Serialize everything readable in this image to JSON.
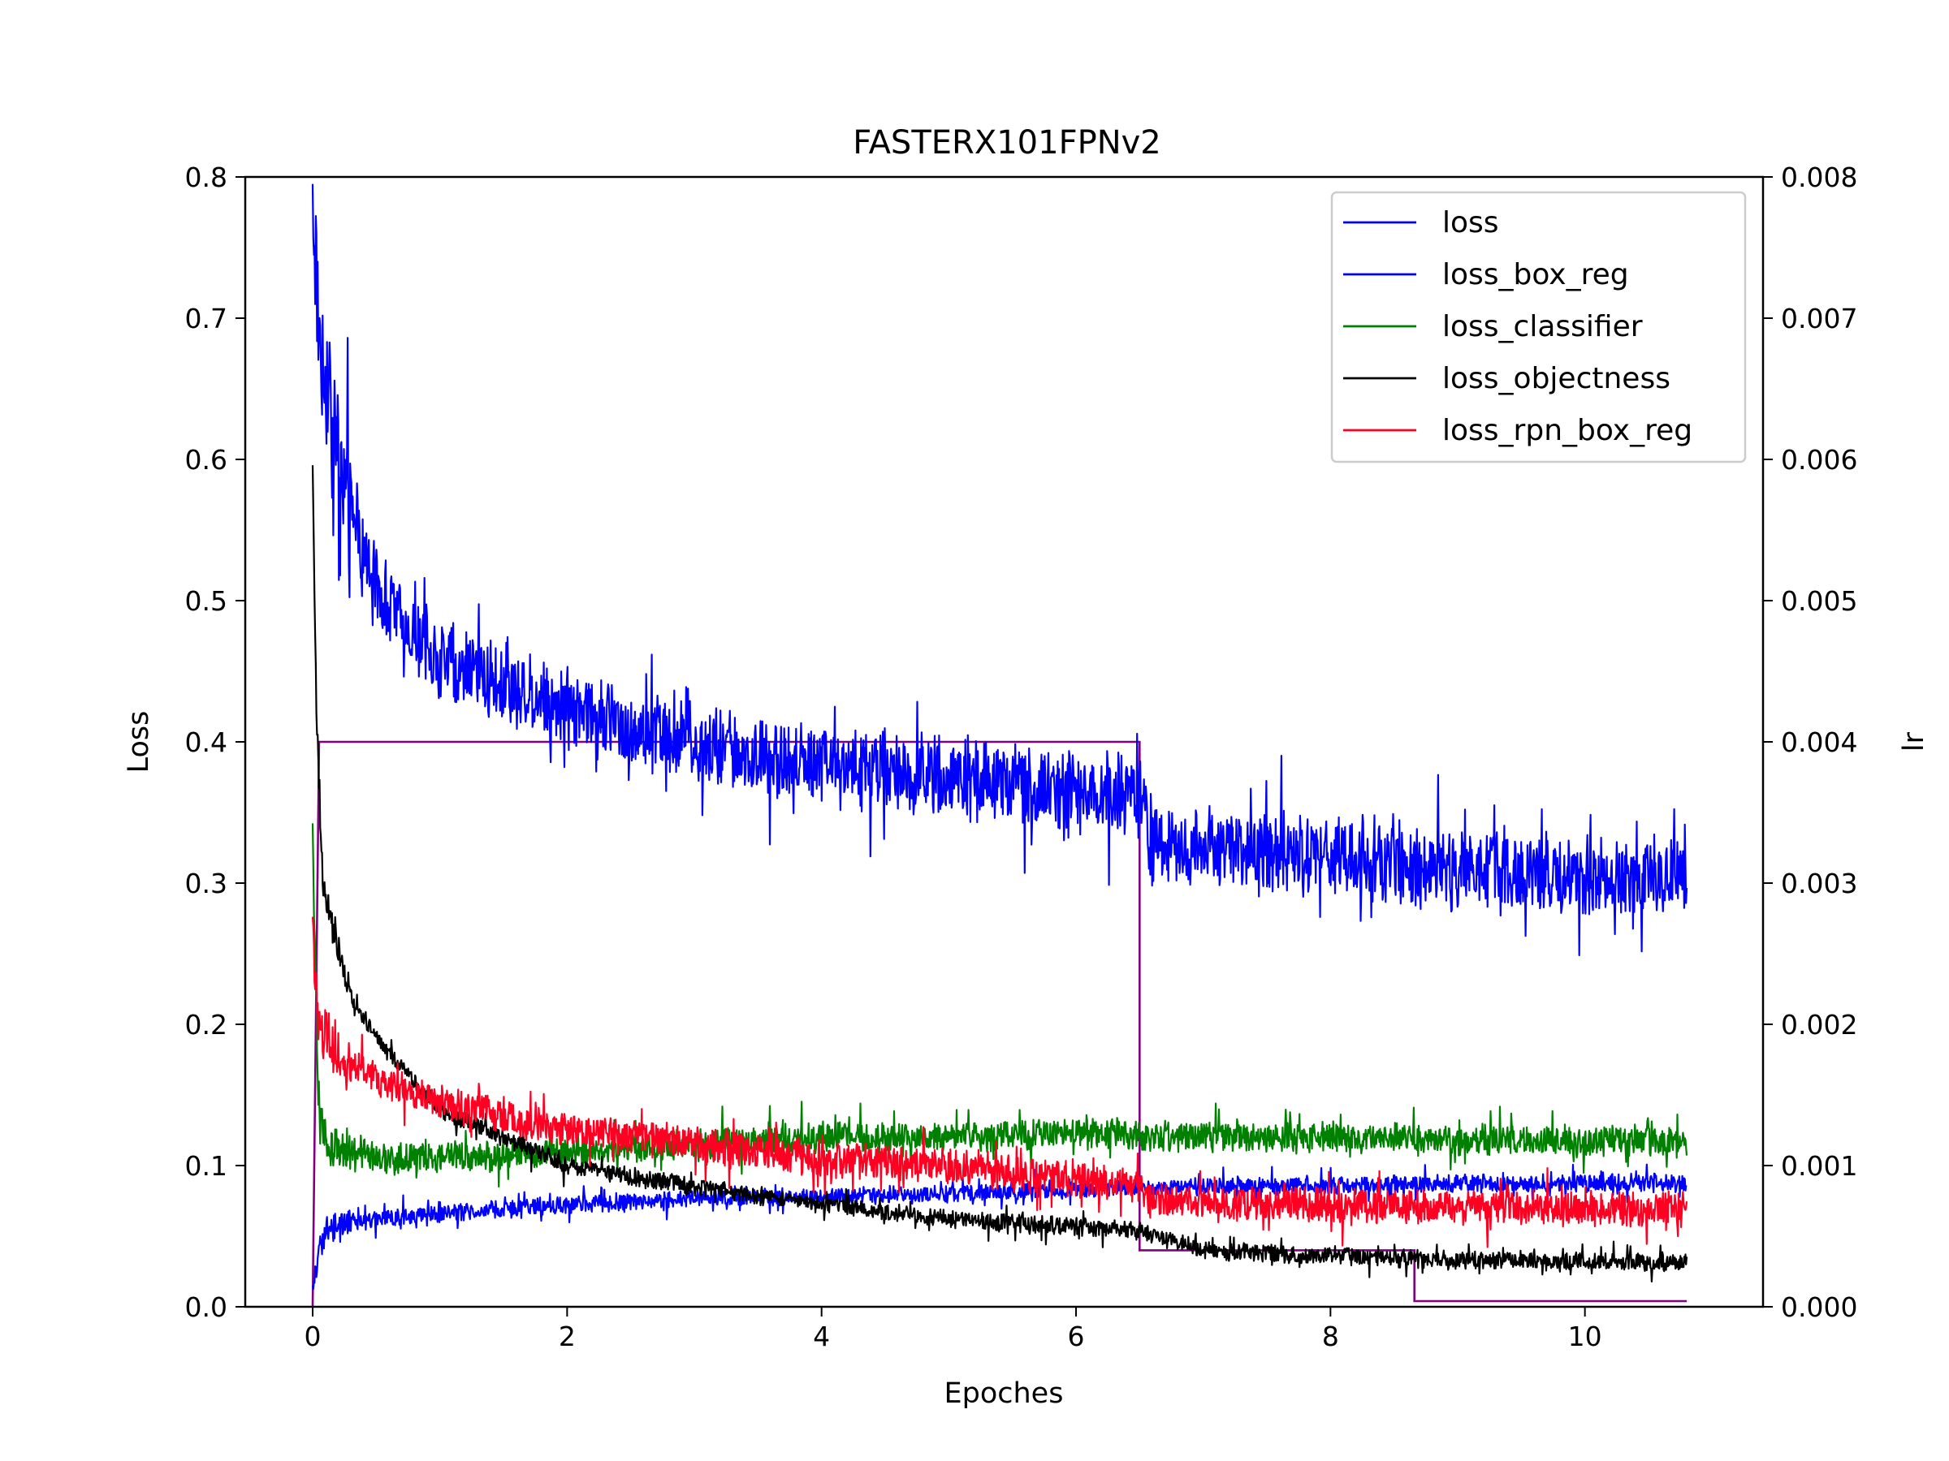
{
  "chart_data": {
    "type": "line",
    "title": "FASTERX101FPNv2",
    "xlabel": "Epoches",
    "ylabel": "Loss",
    "y2label": "lr",
    "xlim": [
      -0.53,
      11.4
    ],
    "ylim": [
      0,
      0.8
    ],
    "y2lim": [
      0,
      0.008
    ],
    "xticks": [
      0,
      2,
      4,
      6,
      8,
      10
    ],
    "yticks": [
      0.0,
      0.1,
      0.2,
      0.3,
      0.4,
      0.5,
      0.6,
      0.7,
      0.8
    ],
    "yticklabels": [
      "0.0",
      "0.1",
      "0.2",
      "0.3",
      "0.4",
      "0.5",
      "0.6",
      "0.7",
      "0.8"
    ],
    "y2ticks": [
      0,
      0.001,
      0.002,
      0.003,
      0.004,
      0.005,
      0.006,
      0.007,
      0.008
    ],
    "y2ticklabels": [
      "0.000",
      "0.001",
      "0.002",
      "0.003",
      "0.004",
      "0.005",
      "0.006",
      "0.007",
      "0.008"
    ],
    "grid": false,
    "legend_position": "top-right",
    "series": [
      {
        "name": "loss",
        "color": "#0000ff",
        "axis": "left",
        "noise": 0.032,
        "x": [
          0,
          0.05,
          0.15,
          0.3,
          0.5,
          0.75,
          1.0,
          1.5,
          2.0,
          2.5,
          3.0,
          3.5,
          4.0,
          4.5,
          5.0,
          5.5,
          6.0,
          6.5,
          6.6,
          7.0,
          7.5,
          8.0,
          8.5,
          9.0,
          9.5,
          10.0,
          10.5,
          10.8
        ],
        "y": [
          0.78,
          0.69,
          0.63,
          0.56,
          0.51,
          0.48,
          0.46,
          0.44,
          0.425,
          0.41,
          0.4,
          0.39,
          0.385,
          0.38,
          0.375,
          0.37,
          0.365,
          0.36,
          0.33,
          0.325,
          0.32,
          0.32,
          0.315,
          0.31,
          0.31,
          0.305,
          0.305,
          0.305
        ]
      },
      {
        "name": "loss_box_reg",
        "color": "#0000ff",
        "axis": "left",
        "noise": 0.007,
        "x": [
          0,
          0.05,
          0.1,
          0.3,
          0.6,
          1.0,
          2.0,
          3.0,
          4.0,
          5.0,
          6.0,
          6.5,
          7.0,
          8.0,
          9.0,
          10.0,
          10.8
        ],
        "y": [
          0.01,
          0.04,
          0.055,
          0.06,
          0.063,
          0.066,
          0.072,
          0.077,
          0.078,
          0.08,
          0.083,
          0.084,
          0.085,
          0.086,
          0.087,
          0.087,
          0.088
        ]
      },
      {
        "name": "loss_classifier",
        "color": "#008000",
        "axis": "left",
        "noise": 0.012,
        "x": [
          0,
          0.05,
          0.15,
          0.5,
          1.0,
          2.0,
          3.0,
          4.0,
          5.0,
          6.0,
          6.5,
          7.0,
          8.0,
          9.0,
          10.0,
          10.8
        ],
        "y": [
          0.33,
          0.13,
          0.115,
          0.105,
          0.105,
          0.11,
          0.115,
          0.12,
          0.12,
          0.123,
          0.122,
          0.12,
          0.12,
          0.118,
          0.118,
          0.117
        ]
      },
      {
        "name": "loss_objectness",
        "color": "#000000",
        "axis": "left",
        "noise": 0.007,
        "x": [
          0,
          0.03,
          0.08,
          0.15,
          0.3,
          0.5,
          0.8,
          1.0,
          1.5,
          2.0,
          3.0,
          4.0,
          5.0,
          6.0,
          6.5,
          7.0,
          8.0,
          9.0,
          10.0,
          10.8
        ],
        "y": [
          0.59,
          0.42,
          0.3,
          0.27,
          0.22,
          0.19,
          0.16,
          0.14,
          0.12,
          0.1,
          0.085,
          0.072,
          0.062,
          0.057,
          0.054,
          0.04,
          0.036,
          0.033,
          0.032,
          0.031
        ]
      },
      {
        "name": "loss_rpn_box_reg",
        "color": "#ff0022",
        "axis": "left",
        "noise": 0.014,
        "x": [
          0,
          0.05,
          0.2,
          0.5,
          1.0,
          1.5,
          2.0,
          3.0,
          4.0,
          5.0,
          6.0,
          6.5,
          6.6,
          7.0,
          8.0,
          9.0,
          10.0,
          10.8
        ],
        "y": [
          0.26,
          0.2,
          0.18,
          0.16,
          0.145,
          0.135,
          0.125,
          0.115,
          0.105,
          0.1,
          0.09,
          0.085,
          0.075,
          0.073,
          0.072,
          0.071,
          0.07,
          0.07
        ]
      },
      {
        "name": "lr",
        "color": "#800080",
        "axis": "right",
        "x": [
          0,
          0.05,
          6.5,
          6.5,
          8.66,
          8.66,
          10.8
        ],
        "y": [
          0.0,
          0.004,
          0.004,
          0.0004,
          0.0004,
          4e-05,
          4e-05
        ]
      }
    ],
    "legend": [
      {
        "label": "loss",
        "color": "#0000ff"
      },
      {
        "label": "loss_box_reg",
        "color": "#0000ff"
      },
      {
        "label": "loss_classifier",
        "color": "#008000"
      },
      {
        "label": "loss_objectness",
        "color": "#000000"
      },
      {
        "label": "loss_rpn_box_reg",
        "color": "#ff0022"
      }
    ]
  }
}
